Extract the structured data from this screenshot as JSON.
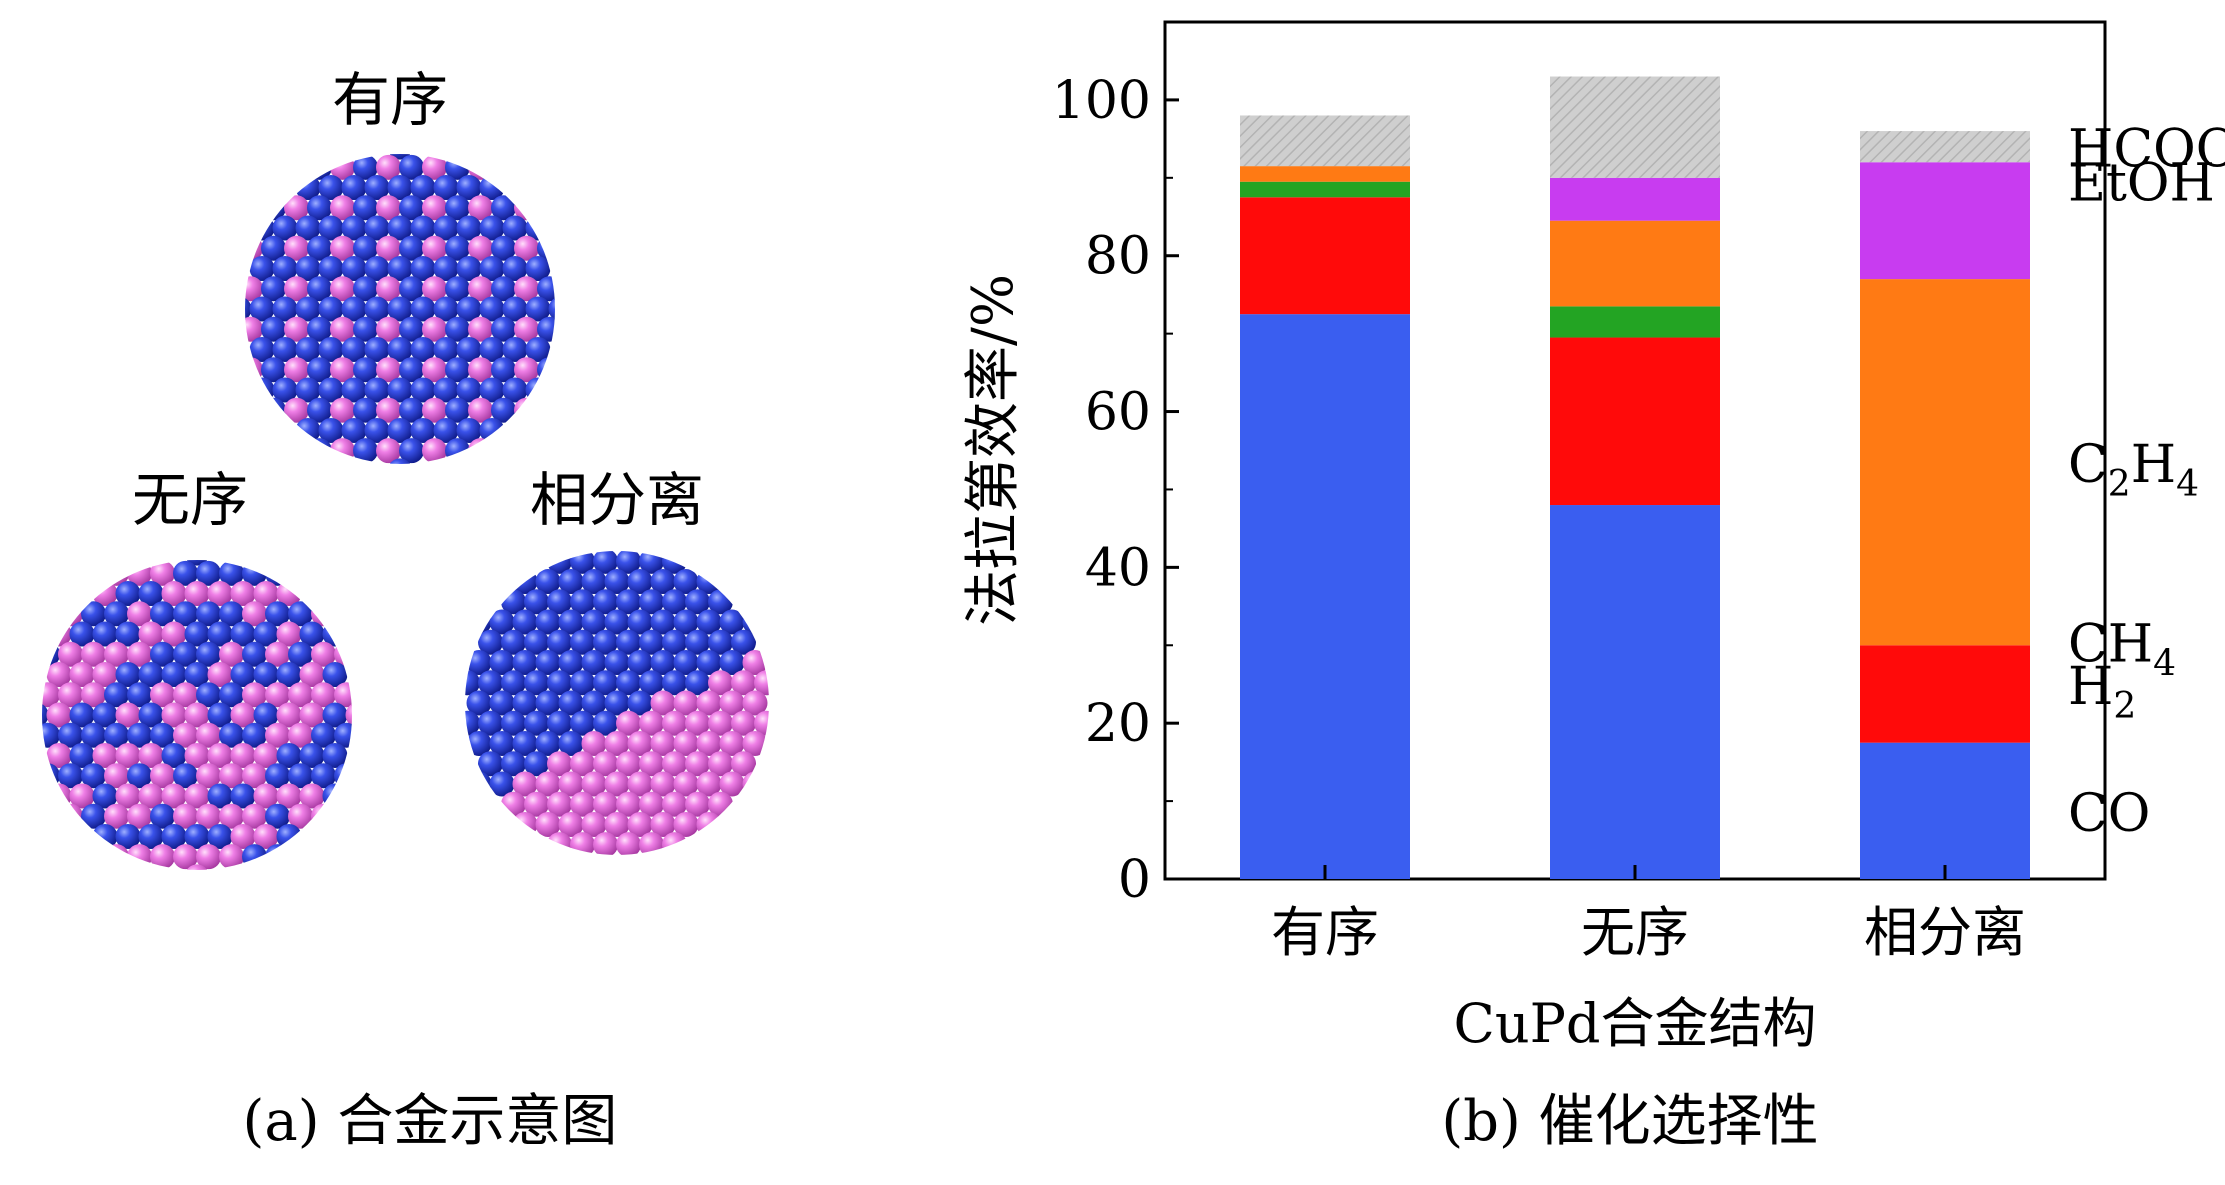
{
  "panel_a": {
    "caption": "(a) 合金示意图",
    "structures": [
      {
        "label": "有序"
      },
      {
        "label": "无序"
      },
      {
        "label": "相分离"
      }
    ]
  },
  "panel_b": {
    "caption": "(b) 催化选择性"
  },
  "colors": {
    "CO": "#3a5ef0",
    "H2": "#ff0a0a",
    "CH4": "#23a423",
    "C2H4": "#ff7a14",
    "EtOH": "#c83cf0",
    "HCOO-": "#c8c8c8",
    "atom_blue": "#2a3bd6",
    "atom_pink": "#e86ce0"
  },
  "chart_data": {
    "type": "bar",
    "stacked": true,
    "categories": [
      "有序",
      "无序",
      "相分离"
    ],
    "series": [
      {
        "name": "CO",
        "values": [
          72.5,
          48.0,
          17.5
        ]
      },
      {
        "name": "H2",
        "values": [
          15.0,
          21.5,
          12.5
        ]
      },
      {
        "name": "CH4",
        "values": [
          2.0,
          4.0,
          0.0
        ]
      },
      {
        "name": "C2H4",
        "values": [
          2.0,
          11.0,
          47.0
        ]
      },
      {
        "name": "EtOH",
        "values": [
          0.0,
          5.5,
          15.0
        ]
      },
      {
        "name": "HCOO-",
        "values": [
          6.5,
          13.0,
          4.0
        ]
      }
    ],
    "series_labels": [
      {
        "key": "HCOO-",
        "base": "HCOO",
        "sup": "−"
      },
      {
        "key": "EtOH",
        "base": "EtOH"
      },
      {
        "key": "C2H4",
        "base": "C",
        "sub1": "2",
        "mid": "H",
        "sub2": "4"
      },
      {
        "key": "CH4",
        "base": "CH",
        "sub1": "4"
      },
      {
        "key": "H2",
        "base": "H",
        "sub1": "2"
      },
      {
        "key": "CO",
        "base": "CO"
      }
    ],
    "xlabel": "CuPd合金结构",
    "ylabel": "法拉第效率/%",
    "ylim": [
      0,
      110
    ],
    "yticks": [
      0,
      20,
      40,
      60,
      80,
      100
    ],
    "grid": false,
    "legend": "right-side inline labels"
  }
}
